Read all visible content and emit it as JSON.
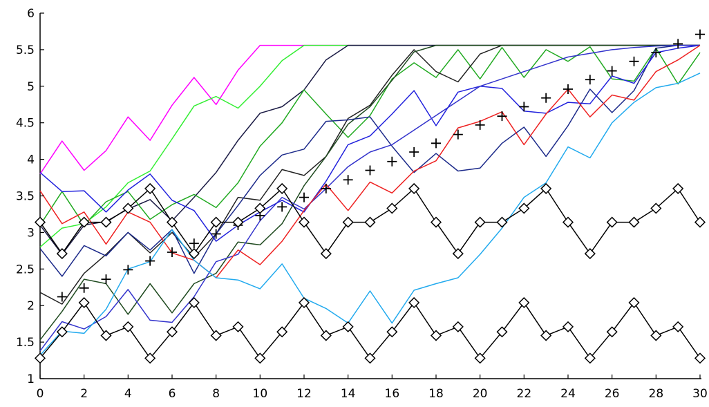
{
  "chart_data": {
    "type": "line",
    "title": "",
    "xlabel": "",
    "ylabel": "",
    "xlim": [
      0,
      30
    ],
    "ylim": [
      1,
      6
    ],
    "xticks": [
      0,
      2,
      4,
      6,
      8,
      10,
      12,
      14,
      16,
      18,
      20,
      22,
      24,
      26,
      28,
      30
    ],
    "yticks": [
      1,
      1.5,
      2,
      2.5,
      3,
      3.5,
      4,
      4.5,
      5,
      5.5,
      6
    ],
    "ytick_labels": [
      "1",
      "1.5",
      "2",
      "2.5",
      "3",
      "3.5",
      "4",
      "4.5",
      "5",
      "5.5",
      "6"
    ],
    "grid": false,
    "legend": "none",
    "x": [
      0,
      1,
      2,
      3,
      4,
      5,
      6,
      7,
      8,
      9,
      10,
      11,
      12,
      13,
      14,
      15,
      16,
      17,
      18,
      19,
      20,
      21,
      22,
      23,
      24,
      25,
      26,
      27,
      28,
      29,
      30
    ],
    "series": [
      {
        "color": "#ff00ff",
        "values": [
          3.8,
          4.25,
          3.85,
          4.12,
          4.58,
          4.26,
          4.74,
          5.12,
          4.75,
          5.22,
          5.56,
          5.56,
          5.56,
          5.56,
          5.56,
          5.56,
          5.56,
          5.56,
          5.56,
          5.56,
          5.56,
          5.56,
          5.56,
          5.56,
          5.56,
          5.56,
          5.56,
          5.56,
          5.56,
          5.56,
          5.56
        ]
      },
      {
        "color": "#33ee33",
        "values": [
          2.8,
          3.06,
          3.12,
          3.35,
          3.68,
          3.84,
          4.28,
          4.73,
          4.86,
          4.7,
          5.0,
          5.35,
          5.56,
          5.56,
          5.56,
          5.56,
          5.56,
          5.56,
          5.56,
          5.56,
          5.56,
          5.56,
          5.56,
          5.56,
          5.56,
          5.56,
          5.56,
          5.56,
          5.56,
          5.56,
          5.56
        ]
      },
      {
        "color": "#1a1a44",
        "values": [
          3.1,
          2.7,
          3.1,
          3.15,
          3.32,
          3.45,
          3.16,
          3.48,
          3.82,
          4.26,
          4.63,
          4.72,
          4.95,
          5.36,
          5.56,
          5.56,
          5.56,
          5.56,
          5.56,
          5.56,
          5.56,
          5.56,
          5.56,
          5.56,
          5.56,
          5.56,
          5.56,
          5.56,
          5.56,
          5.56,
          5.56
        ]
      },
      {
        "color": "#22aa22",
        "values": [
          3.1,
          3.56,
          3.1,
          3.42,
          3.56,
          3.18,
          3.38,
          3.52,
          3.34,
          3.68,
          4.18,
          4.5,
          4.95,
          4.62,
          4.3,
          4.6,
          5.1,
          5.32,
          5.12,
          5.5,
          5.1,
          5.53,
          5.12,
          5.5,
          5.34,
          5.54,
          5.1,
          5.07,
          5.52,
          5.03,
          5.46
        ]
      },
      {
        "color": "#222222",
        "values": [
          2.18,
          2.02,
          2.44,
          2.7,
          3.0,
          2.72,
          3.0,
          2.66,
          2.98,
          3.48,
          3.44,
          3.86,
          3.78,
          4.04,
          4.56,
          4.74,
          5.15,
          5.5,
          5.2,
          5.06,
          5.44,
          5.56,
          5.56,
          5.56,
          5.56,
          5.56,
          5.56,
          5.56,
          5.56,
          5.56,
          5.56
        ]
      },
      {
        "color": "#1f4a1f",
        "values": [
          1.53,
          1.92,
          2.36,
          2.3,
          1.88,
          2.3,
          1.9,
          2.3,
          2.44,
          2.87,
          2.83,
          3.12,
          3.64,
          4.04,
          4.48,
          4.72,
          5.08,
          5.47,
          5.56,
          5.56,
          5.56,
          5.56,
          5.56,
          5.56,
          5.56,
          5.56,
          5.56,
          5.56,
          5.56,
          5.56,
          5.56
        ]
      },
      {
        "color": "#1c2a8a",
        "values": [
          2.78,
          2.4,
          2.82,
          2.68,
          3.0,
          2.76,
          3.04,
          2.44,
          2.98,
          3.37,
          3.78,
          4.06,
          4.14,
          4.52,
          4.54,
          4.58,
          4.18,
          3.82,
          4.08,
          3.84,
          3.88,
          4.22,
          4.44,
          4.04,
          4.46,
          4.96,
          4.64,
          4.94,
          5.52,
          5.56,
          5.56
        ]
      },
      {
        "color": "#2222dd",
        "values": [
          3.82,
          3.56,
          3.57,
          3.28,
          3.58,
          3.8,
          3.44,
          3.3,
          2.88,
          3.1,
          3.28,
          3.44,
          3.28,
          3.7,
          4.2,
          4.32,
          4.62,
          4.94,
          4.46,
          4.92,
          5.0,
          4.97,
          4.66,
          4.63,
          4.78,
          4.76,
          5.14,
          5.04,
          5.46,
          5.52,
          5.56
        ]
      },
      {
        "color": "#3333cc",
        "values": [
          1.38,
          1.78,
          1.68,
          1.85,
          2.22,
          1.8,
          1.77,
          2.12,
          2.6,
          2.7,
          3.16,
          3.48,
          3.32,
          3.6,
          3.9,
          4.1,
          4.2,
          4.4,
          4.6,
          4.8,
          5.0,
          5.1,
          5.2,
          5.3,
          5.4,
          5.45,
          5.5,
          5.53,
          5.55,
          5.56,
          5.56
        ]
      },
      {
        "color": "#ee2222",
        "values": [
          3.57,
          3.12,
          3.28,
          2.84,
          3.28,
          3.14,
          2.72,
          2.62,
          2.38,
          2.76,
          2.56,
          2.88,
          3.3,
          3.66,
          3.3,
          3.69,
          3.54,
          3.84,
          3.98,
          4.43,
          4.52,
          4.65,
          4.2,
          4.62,
          4.96,
          4.58,
          4.88,
          4.81,
          5.2,
          5.36,
          5.56
        ]
      },
      {
        "color": "#22aaee",
        "values": [
          1.32,
          1.65,
          1.62,
          1.95,
          2.5,
          2.6,
          3.04,
          2.62,
          2.38,
          2.35,
          2.23,
          2.57,
          2.1,
          1.96,
          1.76,
          2.2,
          1.76,
          2.21,
          2.3,
          2.38,
          2.7,
          3.06,
          3.48,
          3.68,
          4.17,
          4.02,
          4.5,
          4.78,
          4.98,
          5.04,
          5.18
        ]
      },
      {
        "color": "#000000",
        "marker": "plus",
        "values": [
          null,
          2.12,
          2.24,
          2.36,
          2.49,
          2.61,
          2.73,
          2.85,
          2.98,
          3.1,
          3.23,
          3.35,
          3.48,
          3.6,
          3.72,
          3.85,
          3.97,
          4.1,
          4.22,
          4.34,
          4.47,
          4.59,
          4.72,
          4.84,
          4.96,
          5.09,
          5.21,
          5.34,
          5.46,
          5.58,
          5.71
        ]
      },
      {
        "color": "#000000",
        "marker": "diamond",
        "values": [
          3.14,
          2.71,
          3.14,
          3.14,
          3.33,
          3.6,
          3.14,
          2.71,
          3.14,
          3.14,
          3.33,
          3.6,
          3.14,
          2.71,
          3.14,
          3.14,
          3.33,
          3.6,
          3.14,
          2.71,
          3.14,
          3.14,
          3.33,
          3.6,
          3.14,
          2.71,
          3.14,
          3.14,
          3.33,
          3.6,
          3.14
        ]
      },
      {
        "color": "#000000",
        "marker": "diamond",
        "values": [
          1.28,
          1.64,
          2.04,
          1.59,
          1.71,
          1.28,
          1.64,
          2.04,
          1.59,
          1.71,
          1.28,
          1.64,
          2.04,
          1.59,
          1.71,
          1.28,
          1.64,
          2.04,
          1.59,
          1.71,
          1.28,
          1.64,
          2.04,
          1.59,
          1.71,
          1.28,
          1.64,
          2.04,
          1.59,
          1.71,
          1.28
        ]
      }
    ]
  }
}
